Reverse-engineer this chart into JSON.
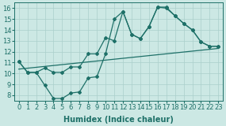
{
  "xlabel": "Humidex (Indice chaleur)",
  "bg_color": "#cce8e4",
  "grid_color": "#aacfcb",
  "line_color": "#1e7068",
  "xlim": [
    -0.5,
    23.5
  ],
  "ylim": [
    7.5,
    16.5
  ],
  "xticks": [
    0,
    1,
    2,
    3,
    4,
    5,
    6,
    7,
    8,
    9,
    10,
    11,
    12,
    13,
    14,
    15,
    16,
    17,
    18,
    19,
    20,
    21,
    22,
    23
  ],
  "yticks": [
    8,
    9,
    10,
    11,
    12,
    13,
    14,
    15,
    16
  ],
  "line1_x": [
    0,
    1,
    2,
    3,
    4,
    5,
    6,
    7,
    8,
    9,
    10,
    11,
    12,
    13,
    14,
    15,
    16,
    17,
    18,
    19,
    20,
    21,
    22,
    23
  ],
  "line1_y": [
    11.1,
    10.1,
    10.1,
    8.9,
    7.7,
    7.7,
    8.2,
    8.3,
    9.6,
    9.7,
    11.8,
    15.0,
    15.7,
    13.6,
    13.2,
    14.3,
    16.1,
    16.1,
    15.3,
    14.6,
    14.0,
    12.9,
    12.5,
    12.5
  ],
  "line2_x": [
    0,
    1,
    2,
    3,
    4,
    5,
    6,
    7,
    8,
    9,
    10,
    11,
    12,
    13,
    14,
    15,
    16,
    17,
    18,
    19,
    20,
    21,
    22,
    23
  ],
  "line2_y": [
    11.1,
    10.1,
    10.1,
    10.5,
    10.1,
    10.1,
    10.6,
    10.6,
    11.8,
    11.8,
    13.3,
    13.0,
    15.7,
    13.6,
    13.2,
    14.3,
    16.1,
    16.0,
    15.3,
    14.6,
    14.0,
    12.9,
    12.5,
    12.5
  ],
  "line3_x": [
    0,
    23
  ],
  "line3_y": [
    10.4,
    12.3
  ],
  "marker": "D",
  "marker_size": 2.0,
  "line_width": 0.9,
  "xlabel_fontsize": 7,
  "tick_fontsize": 6.0
}
